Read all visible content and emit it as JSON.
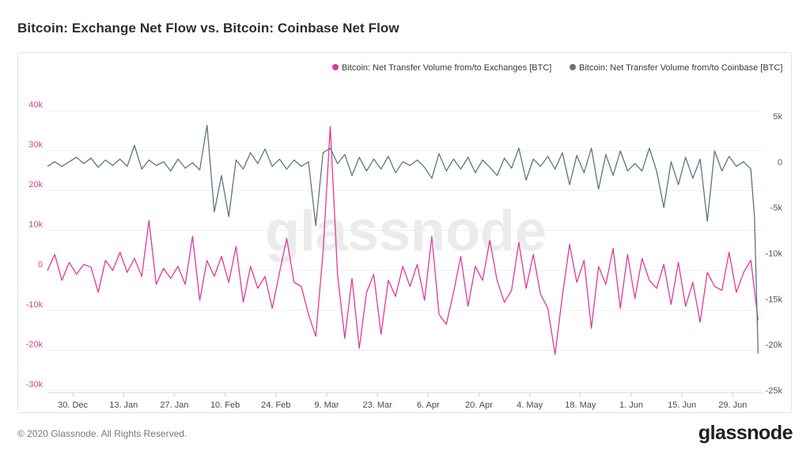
{
  "title": "Bitcoin: Exchange Net Flow vs. Bitcoin: Coinbase Net Flow",
  "footer": {
    "copyright": "© 2020 Glassnode. All Rights Reserved.",
    "logo": "glassnode"
  },
  "watermark": "glassnode",
  "colors": {
    "exchanges": "#e0399a",
    "coinbase": "#5e7483",
    "left_axis": "#d0458f",
    "right_axis": "#4d5a63",
    "grid": "#ececec"
  },
  "chart_data": {
    "type": "line",
    "title": "Bitcoin: Exchange Net Flow vs. Bitcoin: Coinbase Net Flow",
    "legend_position": "top-right",
    "grid": true,
    "x_tick_labels": [
      "30. Dec",
      "13. Jan",
      "27. Jan",
      "10. Feb",
      "24. Feb",
      "9. Mar",
      "23. Mar",
      "6. Apr",
      "20. Apr",
      "4. May",
      "18. May",
      "1. Jun",
      "15. Jun",
      "29. Jun"
    ],
    "x_range": [
      "2019-12-23",
      "2020-07-07"
    ],
    "y_left": {
      "ticks": [
        40000,
        30000,
        20000,
        10000,
        0,
        -10000,
        -20000,
        -30000
      ],
      "tick_labels": [
        "40k",
        "30k",
        "20k",
        "10k",
        "0",
        "-10k",
        "-20k",
        "-30k"
      ],
      "range": [
        -30000,
        40000
      ]
    },
    "y_right": {
      "ticks": [
        5000,
        0,
        -5000,
        -10000,
        -15000,
        -20000,
        -25000
      ],
      "tick_labels": [
        "5k",
        "0",
        "-5k",
        "-10k",
        "-15k",
        "-20k",
        "-25k"
      ],
      "range": [
        -25000,
        5000
      ]
    },
    "series": [
      {
        "name": "Bitcoin: Net Transfer Volume from/to Exchanges [BTC]",
        "axis": "left",
        "color": "#e0399a",
        "points": [
          [
            "2019-12-23",
            0
          ],
          [
            "2019-12-25",
            4000
          ],
          [
            "2019-12-27",
            -2500
          ],
          [
            "2019-12-29",
            2000
          ],
          [
            "2019-12-31",
            -1000
          ],
          [
            "2020-01-02",
            1500
          ],
          [
            "2020-01-04",
            800
          ],
          [
            "2020-01-06",
            -5500
          ],
          [
            "2020-01-08",
            2500
          ],
          [
            "2020-01-10",
            0
          ],
          [
            "2020-01-12",
            4500
          ],
          [
            "2020-01-14",
            -500
          ],
          [
            "2020-01-16",
            3000
          ],
          [
            "2020-01-18",
            -1500
          ],
          [
            "2020-01-20",
            12500
          ],
          [
            "2020-01-22",
            -3500
          ],
          [
            "2020-01-24",
            500
          ],
          [
            "2020-01-26",
            -2000
          ],
          [
            "2020-01-28",
            1000
          ],
          [
            "2020-01-30",
            -3500
          ],
          [
            "2020-02-01",
            8500
          ],
          [
            "2020-02-03",
            -7500
          ],
          [
            "2020-02-05",
            2500
          ],
          [
            "2020-02-07",
            -1500
          ],
          [
            "2020-02-09",
            3500
          ],
          [
            "2020-02-11",
            -3000
          ],
          [
            "2020-02-13",
            6000
          ],
          [
            "2020-02-15",
            -8000
          ],
          [
            "2020-02-17",
            1000
          ],
          [
            "2020-02-19",
            -4500
          ],
          [
            "2020-02-21",
            -1500
          ],
          [
            "2020-02-23",
            -9500
          ],
          [
            "2020-02-25",
            -500
          ],
          [
            "2020-02-27",
            8000
          ],
          [
            "2020-02-29",
            -3000
          ],
          [
            "2020-03-02",
            -4000
          ],
          [
            "2020-03-04",
            -11000
          ],
          [
            "2020-03-06",
            -16500
          ],
          [
            "2020-03-08",
            4500
          ],
          [
            "2020-03-10",
            36000
          ],
          [
            "2020-03-12",
            -1000
          ],
          [
            "2020-03-14",
            -17000
          ],
          [
            "2020-03-16",
            -2000
          ],
          [
            "2020-03-18",
            -19500
          ],
          [
            "2020-03-20",
            -5500
          ],
          [
            "2020-03-22",
            -1000
          ],
          [
            "2020-03-24",
            -16000
          ],
          [
            "2020-03-26",
            -2500
          ],
          [
            "2020-03-28",
            -6500
          ],
          [
            "2020-03-30",
            1000
          ],
          [
            "2020-04-01",
            -4000
          ],
          [
            "2020-04-03",
            1500
          ],
          [
            "2020-04-05",
            -7500
          ],
          [
            "2020-04-07",
            8500
          ],
          [
            "2020-04-09",
            -11000
          ],
          [
            "2020-04-11",
            -13500
          ],
          [
            "2020-04-13",
            -5500
          ],
          [
            "2020-04-15",
            3500
          ],
          [
            "2020-04-17",
            -9000
          ],
          [
            "2020-04-19",
            1000
          ],
          [
            "2020-04-21",
            -2500
          ],
          [
            "2020-04-23",
            7500
          ],
          [
            "2020-04-25",
            -2500
          ],
          [
            "2020-04-27",
            -8000
          ],
          [
            "2020-04-29",
            -5000
          ],
          [
            "2020-05-01",
            7000
          ],
          [
            "2020-05-03",
            -4500
          ],
          [
            "2020-05-05",
            4000
          ],
          [
            "2020-05-07",
            -6000
          ],
          [
            "2020-05-09",
            -9500
          ],
          [
            "2020-05-11",
            -21000
          ],
          [
            "2020-05-13",
            -6500
          ],
          [
            "2020-05-15",
            6500
          ],
          [
            "2020-05-17",
            -3000
          ],
          [
            "2020-05-19",
            2500
          ],
          [
            "2020-05-21",
            -14500
          ],
          [
            "2020-05-23",
            1000
          ],
          [
            "2020-05-25",
            -3500
          ],
          [
            "2020-05-27",
            5500
          ],
          [
            "2020-05-29",
            -9500
          ],
          [
            "2020-05-31",
            4000
          ],
          [
            "2020-06-02",
            -7000
          ],
          [
            "2020-06-04",
            3000
          ],
          [
            "2020-06-06",
            -2500
          ],
          [
            "2020-06-08",
            -4500
          ],
          [
            "2020-06-10",
            1500
          ],
          [
            "2020-06-12",
            -8500
          ],
          [
            "2020-06-14",
            2000
          ],
          [
            "2020-06-16",
            -9000
          ],
          [
            "2020-06-18",
            -3000
          ],
          [
            "2020-06-20",
            -13000
          ],
          [
            "2020-06-22",
            -500
          ],
          [
            "2020-06-24",
            -4000
          ],
          [
            "2020-06-26",
            -5000
          ],
          [
            "2020-06-28",
            4500
          ],
          [
            "2020-06-30",
            -5500
          ],
          [
            "2020-07-02",
            -500
          ],
          [
            "2020-07-04",
            2500
          ],
          [
            "2020-07-06",
            -12500
          ]
        ]
      },
      {
        "name": "Bitcoin: Net Transfer Volume from/to Coinbase [BTC]",
        "axis": "right",
        "color": "#5e7483",
        "points": [
          [
            "2019-12-23",
            -500
          ],
          [
            "2019-12-25",
            0
          ],
          [
            "2019-12-27",
            -500
          ],
          [
            "2019-12-29",
            0
          ],
          [
            "2019-12-31",
            500
          ],
          [
            "2020-01-02",
            -200
          ],
          [
            "2020-01-04",
            400
          ],
          [
            "2020-01-06",
            -600
          ],
          [
            "2020-01-08",
            200
          ],
          [
            "2020-01-10",
            -400
          ],
          [
            "2020-01-12",
            300
          ],
          [
            "2020-01-14",
            -500
          ],
          [
            "2020-01-16",
            1800
          ],
          [
            "2020-01-18",
            -800
          ],
          [
            "2020-01-20",
            200
          ],
          [
            "2020-01-22",
            -400
          ],
          [
            "2020-01-24",
            0
          ],
          [
            "2020-01-26",
            -1000
          ],
          [
            "2020-01-28",
            300
          ],
          [
            "2020-01-30",
            -700
          ],
          [
            "2020-02-01",
            -100
          ],
          [
            "2020-02-03",
            -900
          ],
          [
            "2020-02-05",
            4000
          ],
          [
            "2020-02-07",
            -5500
          ],
          [
            "2020-02-09",
            -1500
          ],
          [
            "2020-02-11",
            -6000
          ],
          [
            "2020-02-13",
            200
          ],
          [
            "2020-02-15",
            -800
          ],
          [
            "2020-02-17",
            1000
          ],
          [
            "2020-02-19",
            -200
          ],
          [
            "2020-02-21",
            1400
          ],
          [
            "2020-02-23",
            -500
          ],
          [
            "2020-02-25",
            300
          ],
          [
            "2020-02-27",
            -800
          ],
          [
            "2020-02-29",
            200
          ],
          [
            "2020-03-02",
            -500
          ],
          [
            "2020-03-04",
            0
          ],
          [
            "2020-03-06",
            -7000
          ],
          [
            "2020-03-08",
            1000
          ],
          [
            "2020-03-10",
            1500
          ],
          [
            "2020-03-12",
            -200
          ],
          [
            "2020-03-14",
            800
          ],
          [
            "2020-03-16",
            -1500
          ],
          [
            "2020-03-18",
            500
          ],
          [
            "2020-03-20",
            -1000
          ],
          [
            "2020-03-22",
            300
          ],
          [
            "2020-03-24",
            -800
          ],
          [
            "2020-03-26",
            600
          ],
          [
            "2020-03-28",
            -1200
          ],
          [
            "2020-03-30",
            0
          ],
          [
            "2020-04-01",
            -400
          ],
          [
            "2020-04-03",
            200
          ],
          [
            "2020-04-05",
            -600
          ],
          [
            "2020-04-07",
            -1800
          ],
          [
            "2020-04-09",
            900
          ],
          [
            "2020-04-11",
            -1000
          ],
          [
            "2020-04-13",
            300
          ],
          [
            "2020-04-15",
            -800
          ],
          [
            "2020-04-17",
            500
          ],
          [
            "2020-04-19",
            -1200
          ],
          [
            "2020-04-21",
            200
          ],
          [
            "2020-04-23",
            -600
          ],
          [
            "2020-04-25",
            -1500
          ],
          [
            "2020-04-27",
            400
          ],
          [
            "2020-04-29",
            -700
          ],
          [
            "2020-05-01",
            1500
          ],
          [
            "2020-05-03",
            -2000
          ],
          [
            "2020-05-05",
            300
          ],
          [
            "2020-05-07",
            -500
          ],
          [
            "2020-05-09",
            600
          ],
          [
            "2020-05-11",
            -800
          ],
          [
            "2020-05-13",
            1000
          ],
          [
            "2020-05-15",
            -2500
          ],
          [
            "2020-05-17",
            700
          ],
          [
            "2020-05-19",
            -1200
          ],
          [
            "2020-05-21",
            1500
          ],
          [
            "2020-05-23",
            -3000
          ],
          [
            "2020-05-25",
            800
          ],
          [
            "2020-05-27",
            -1500
          ],
          [
            "2020-05-29",
            1200
          ],
          [
            "2020-05-31",
            -1000
          ],
          [
            "2020-06-02",
            -200
          ],
          [
            "2020-06-04",
            -1000
          ],
          [
            "2020-06-06",
            1500
          ],
          [
            "2020-06-08",
            -1000
          ],
          [
            "2020-06-10",
            -5000
          ],
          [
            "2020-06-12",
            0
          ],
          [
            "2020-06-14",
            -2500
          ],
          [
            "2020-06-16",
            500
          ],
          [
            "2020-06-18",
            -1800
          ],
          [
            "2020-06-20",
            300
          ],
          [
            "2020-06-22",
            -6500
          ],
          [
            "2020-06-24",
            1200
          ],
          [
            "2020-06-26",
            -1000
          ],
          [
            "2020-06-28",
            600
          ],
          [
            "2020-06-30",
            -500
          ],
          [
            "2020-07-02",
            0
          ],
          [
            "2020-07-04",
            -800
          ],
          [
            "2020-07-05",
            -6000
          ],
          [
            "2020-07-06",
            -21000
          ]
        ]
      }
    ]
  }
}
